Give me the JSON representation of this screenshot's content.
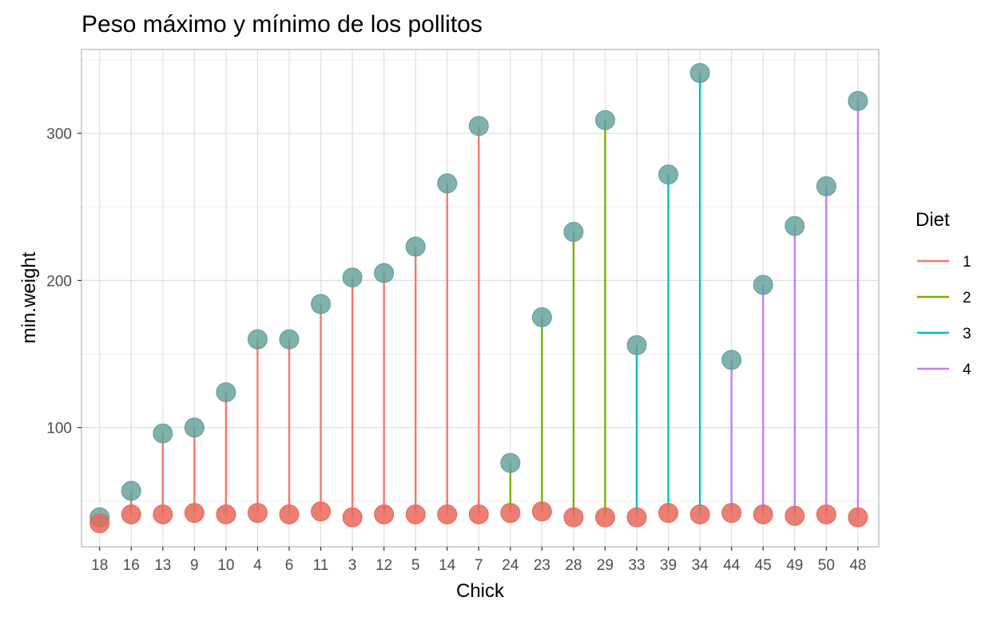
{
  "chart_data": {
    "type": "lollipop",
    "title": "Peso máximo y mínimo de los pollitos",
    "xlabel": "Chick",
    "ylabel": "min.weight",
    "ylim": [
      19,
      357
    ],
    "yticks": [
      100,
      200,
      300
    ],
    "grid": true,
    "legend": {
      "title": "Diet",
      "position": "right",
      "entries": [
        "1",
        "2",
        "3",
        "4"
      ],
      "colors": [
        "#F8766D",
        "#7CAE00",
        "#00BFC4",
        "#C77CFF"
      ]
    },
    "min_point_color": "#E8685A",
    "max_point_color": "#5F9E98",
    "categories": [
      "18",
      "16",
      "13",
      "9",
      "10",
      "4",
      "6",
      "11",
      "3",
      "12",
      "5",
      "14",
      "7",
      "24",
      "23",
      "28",
      "29",
      "33",
      "39",
      "34",
      "44",
      "45",
      "49",
      "50",
      "48"
    ],
    "diet": [
      "1",
      "1",
      "1",
      "1",
      "1",
      "1",
      "1",
      "1",
      "1",
      "1",
      "1",
      "1",
      "1",
      "2",
      "2",
      "2",
      "2",
      "3",
      "3",
      "3",
      "4",
      "4",
      "4",
      "4",
      "4"
    ],
    "min_weight": [
      35,
      41,
      41,
      42,
      41,
      42,
      41,
      43,
      39,
      41,
      41,
      41,
      41,
      42,
      43,
      39,
      39,
      39,
      42,
      41,
      42,
      41,
      40,
      41,
      39
    ],
    "max_weight": [
      39,
      57,
      96,
      100,
      124,
      160,
      160,
      184,
      202,
      205,
      223,
      266,
      305,
      76,
      175,
      233,
      309,
      156,
      272,
      341,
      146,
      197,
      237,
      264,
      322
    ]
  }
}
